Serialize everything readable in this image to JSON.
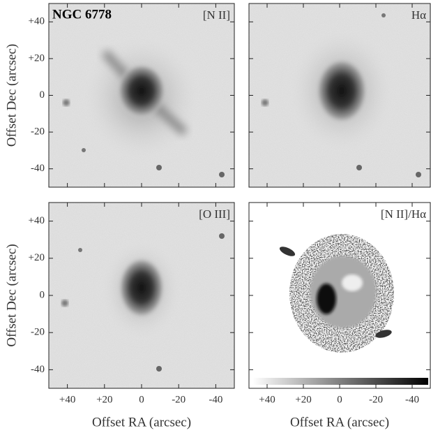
{
  "title": "NGC 6778",
  "panels": [
    {
      "label": "[N II]"
    },
    {
      "label": "Hα"
    },
    {
      "label": "[O III]"
    },
    {
      "label": "[N II]/Hα"
    }
  ],
  "xlabel": "Offset RA (arcsec)",
  "ylabel": "Offset Dec (arcsec)",
  "xlim": [
    50,
    -50
  ],
  "ylim": [
    -50,
    50
  ],
  "xticks": [
    {
      "value": 40,
      "label": "+40"
    },
    {
      "value": 20,
      "label": "+20"
    },
    0,
    -20,
    -40
  ],
  "yticks": [
    {
      "value": 40,
      "label": "+40"
    },
    {
      "value": 20,
      "label": "+20"
    },
    0,
    -20,
    -40
  ]
}
